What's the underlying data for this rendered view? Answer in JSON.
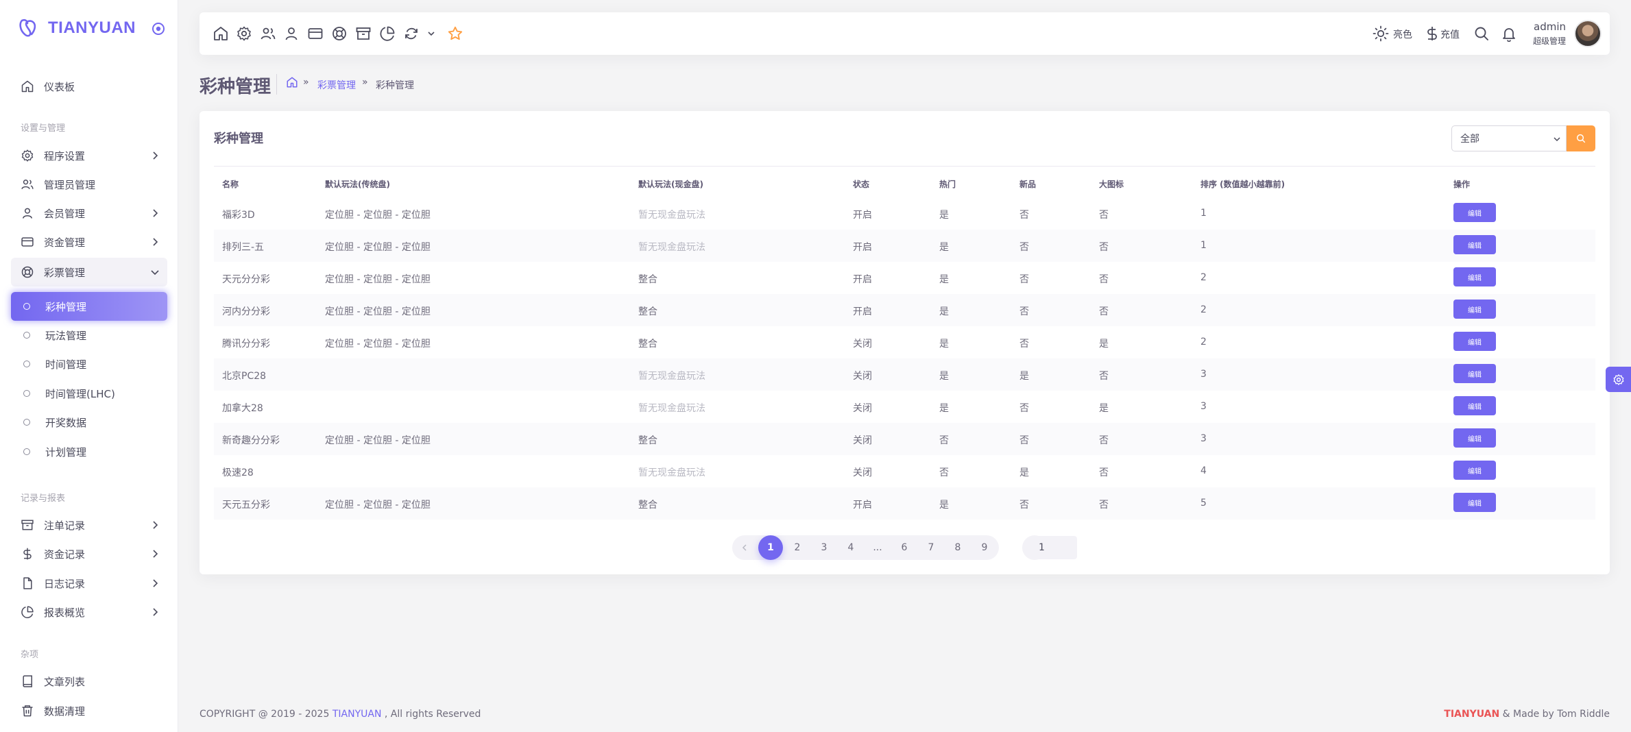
{
  "brand": {
    "name": "TIANYUAN"
  },
  "sidebar": {
    "dashboard": "仪表板",
    "section_settings": "设置与管理",
    "program_settings": "程序设置",
    "admin_management": "管理员管理",
    "member_management": "会员管理",
    "finance_management": "资金管理",
    "lottery_management": "彩票管理",
    "sub_items": [
      "彩种管理",
      "玩法管理",
      "时间管理",
      "时间管理(LHC)",
      "开奖数据",
      "计划管理"
    ],
    "section_records": "记录与报表",
    "bet_records": "注单记录",
    "finance_records": "资金记录",
    "log_records": "日志记录",
    "report_overview": "报表概览",
    "section_misc": "杂项",
    "article_list": "文章列表",
    "data_cleanup": "数据清理"
  },
  "topbar": {
    "icons": [
      "home-icon",
      "settings-icon",
      "users-icon",
      "user-icon",
      "credit-card-icon",
      "lifebuoy-icon",
      "archive-icon",
      "pie-chart-icon",
      "refresh-icon",
      "chevron-down-icon",
      "star-icon"
    ],
    "theme_label": "亮色",
    "recharge_label": "充值",
    "user_name": "admin",
    "user_role": "超级管理"
  },
  "page": {
    "title": "彩种管理",
    "breadcrumb_parent": "彩票管理",
    "breadcrumb_current": "彩种管理"
  },
  "card": {
    "title": "彩种管理",
    "filter_value": "全部"
  },
  "table": {
    "headers": [
      "名称",
      "默认玩法(传统盘)",
      "默认玩法(现金盘)",
      "状态",
      "热门",
      "新品",
      "大图标",
      "排序 (数值越小越靠前)",
      "操作"
    ],
    "edit_label": "编辑",
    "rows": [
      {
        "name": "福彩3D",
        "traditional": "定位胆 - 定位胆 - 定位胆",
        "cash": "暂无现金盘玩法",
        "cash_muted": true,
        "status": "开启",
        "hot": "是",
        "new": "否",
        "big_icon": "否",
        "sort": "1"
      },
      {
        "name": "排列三-五",
        "traditional": "定位胆 - 定位胆 - 定位胆",
        "cash": "暂无现金盘玩法",
        "cash_muted": true,
        "status": "开启",
        "hot": "是",
        "new": "否",
        "big_icon": "否",
        "sort": "1"
      },
      {
        "name": "天元分分彩",
        "traditional": "定位胆 - 定位胆 - 定位胆",
        "cash": "整合",
        "cash_muted": false,
        "status": "开启",
        "hot": "是",
        "new": "否",
        "big_icon": "否",
        "sort": "2"
      },
      {
        "name": "河内分分彩",
        "traditional": "定位胆 - 定位胆 - 定位胆",
        "cash": "整合",
        "cash_muted": false,
        "status": "开启",
        "hot": "是",
        "new": "否",
        "big_icon": "否",
        "sort": "2"
      },
      {
        "name": "腾讯分分彩",
        "traditional": "定位胆 - 定位胆 - 定位胆",
        "cash": "整合",
        "cash_muted": false,
        "status": "关闭",
        "hot": "是",
        "new": "否",
        "big_icon": "是",
        "sort": "2"
      },
      {
        "name": "北京PC28",
        "traditional": "",
        "cash": "暂无现金盘玩法",
        "cash_muted": true,
        "status": "关闭",
        "hot": "是",
        "new": "是",
        "big_icon": "否",
        "sort": "3"
      },
      {
        "name": "加拿大28",
        "traditional": "",
        "cash": "暂无现金盘玩法",
        "cash_muted": true,
        "status": "关闭",
        "hot": "是",
        "new": "否",
        "big_icon": "是",
        "sort": "3"
      },
      {
        "name": "新奇趣分分彩",
        "traditional": "定位胆 - 定位胆 - 定位胆",
        "cash": "整合",
        "cash_muted": false,
        "status": "关闭",
        "hot": "否",
        "new": "否",
        "big_icon": "否",
        "sort": "3"
      },
      {
        "name": "极速28",
        "traditional": "",
        "cash": "暂无现金盘玩法",
        "cash_muted": true,
        "status": "关闭",
        "hot": "否",
        "new": "是",
        "big_icon": "否",
        "sort": "4"
      },
      {
        "name": "天元五分彩",
        "traditional": "定位胆 - 定位胆 - 定位胆",
        "cash": "整合",
        "cash_muted": false,
        "status": "开启",
        "hot": "是",
        "new": "否",
        "big_icon": "否",
        "sort": "5"
      }
    ]
  },
  "pagination": {
    "prev": "‹",
    "next": "›",
    "pages": [
      "1",
      "2",
      "3",
      "4",
      "...",
      "6",
      "7",
      "8",
      "9"
    ],
    "active_page": "1",
    "jump_value": "1"
  },
  "footer": {
    "copyright_prefix": "COPYRIGHT @ 2019 - 2025",
    "copyright_brand": "TIANYUAN",
    "copyright_suffix": ", All rights Reserved",
    "made_brand": "TIANYUAN",
    "made_suffix": "& Made by Tom Riddle"
  },
  "colors": {
    "primary": "#7367f0",
    "warning": "#ff9f43",
    "danger": "#ea5455"
  }
}
